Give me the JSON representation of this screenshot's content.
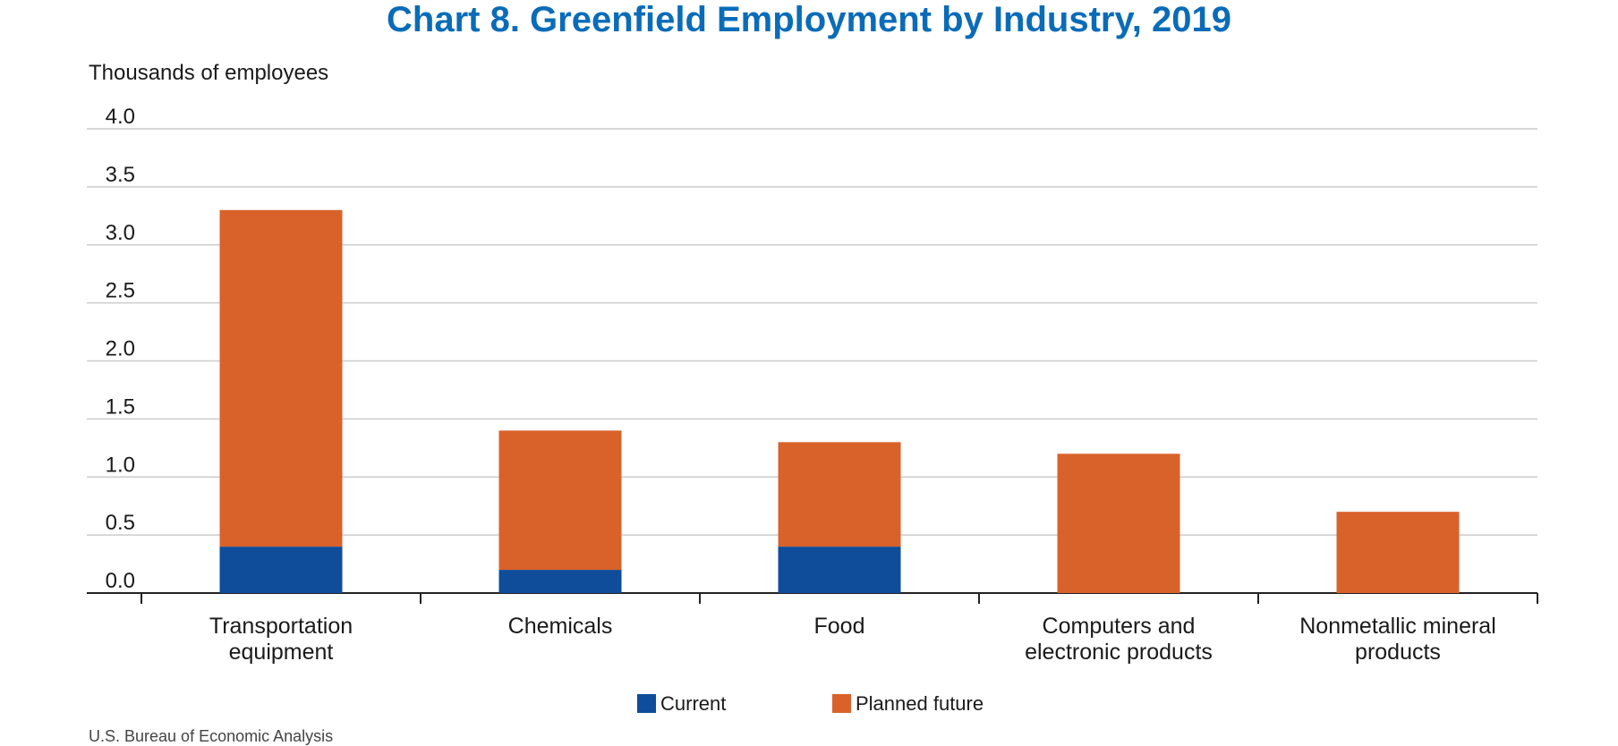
{
  "chart_data": {
    "type": "bar",
    "stacked": true,
    "title": "Chart 8. Greenfield Employment by Industry, 2019",
    "ylabel": "Thousands of employees",
    "xlabel": "",
    "ylim": [
      0,
      4
    ],
    "yticks": [
      "0.0",
      "0.5",
      "1.0",
      "1.5",
      "2.0",
      "2.5",
      "3.0",
      "3.5",
      "4.0"
    ],
    "categories": [
      [
        "Transportation",
        "equipment"
      ],
      [
        "Chemicals"
      ],
      [
        "Food"
      ],
      [
        "Computers and",
        "electronic products"
      ],
      [
        "Nonmetallic mineral",
        "products"
      ]
    ],
    "series": [
      {
        "name": "Current",
        "color": "#0f4d9b",
        "values": [
          0.4,
          0.2,
          0.4,
          0.0,
          0.0
        ]
      },
      {
        "name": "Planned future",
        "color": "#d9622b",
        "values": [
          2.9,
          1.2,
          0.9,
          1.2,
          0.7
        ]
      }
    ],
    "grid": true,
    "legend_position": "bottom-center"
  },
  "source": "U.S. Bureau of Economic Analysis"
}
